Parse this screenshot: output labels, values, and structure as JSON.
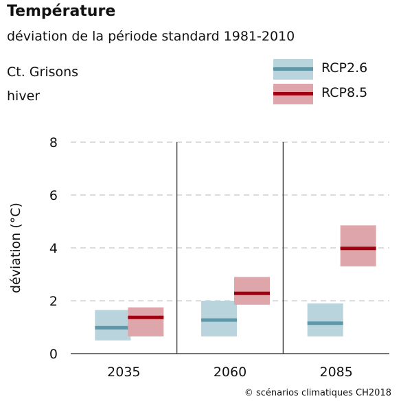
{
  "header": {
    "title": "Température",
    "subtitle": "déviation de la période standard 1981-2010",
    "region": "Ct. Grisons",
    "season": "hiver"
  },
  "legend": [
    {
      "label": "RCP2.6",
      "fill": "#b9d4dd",
      "line": "#5e97a8"
    },
    {
      "label": "RCP8.5",
      "fill": "#dea6aa",
      "line": "#a00010"
    }
  ],
  "credit": "© scénarios climatiques CH2018",
  "chart_data": {
    "type": "bar",
    "ylabel": "déviation (°C)",
    "ylim": [
      0,
      8
    ],
    "yticks": [
      0,
      2,
      4,
      6,
      8
    ],
    "grid": "dashed-horizontal",
    "categories": [
      "2035",
      "2060",
      "2085"
    ],
    "series": [
      {
        "name": "RCP2.6",
        "color_fill": "#b9d4dd",
        "color_line": "#5e97a8",
        "low": [
          0.5,
          0.65,
          0.65
        ],
        "median": [
          0.98,
          1.27,
          1.15
        ],
        "high": [
          1.65,
          2.0,
          1.9
        ]
      },
      {
        "name": "RCP8.5",
        "color_fill": "#dea6aa",
        "color_line": "#a00010",
        "low": [
          0.65,
          1.85,
          3.3
        ],
        "median": [
          1.37,
          2.28,
          3.98
        ],
        "high": [
          1.75,
          2.9,
          4.85
        ]
      }
    ]
  }
}
